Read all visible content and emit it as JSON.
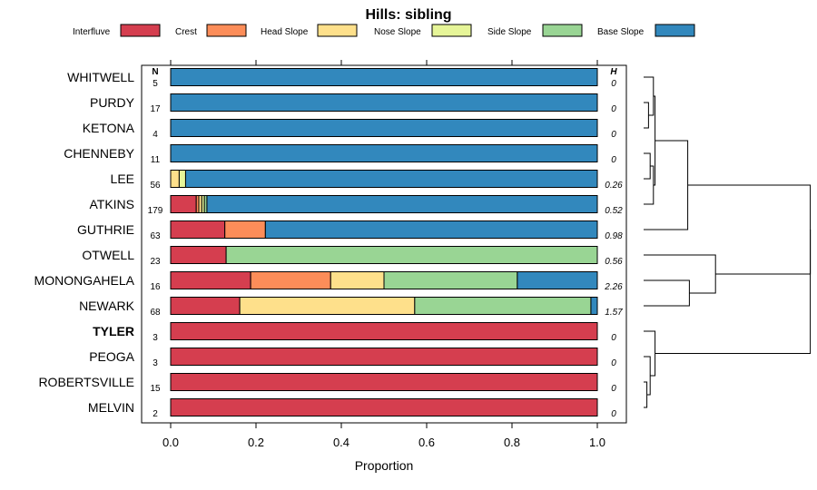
{
  "chart_data": {
    "type": "bar",
    "orientation": "horizontal",
    "stacked": true,
    "title": "Hills: sibling",
    "xlabel": "Proportion",
    "xlim": [
      0,
      1
    ],
    "xticks": [
      "0.0",
      "0.2",
      "0.4",
      "0.6",
      "0.8",
      "1.0"
    ],
    "n_header": "N",
    "h_header": "H",
    "legend": [
      {
        "name": "Interfluve",
        "color": "#D53E4F"
      },
      {
        "name": "Crest",
        "color": "#FC8D59"
      },
      {
        "name": "Head Slope",
        "color": "#FEE08B"
      },
      {
        "name": "Nose Slope",
        "color": "#E6F598"
      },
      {
        "name": "Side Slope",
        "color": "#99D594"
      },
      {
        "name": "Base Slope",
        "color": "#3288BD"
      }
    ],
    "rows": [
      {
        "label": "WHITWELL",
        "n": "5",
        "h": "0",
        "bold": false,
        "values": [
          0,
          0,
          0,
          0,
          0,
          1
        ]
      },
      {
        "label": "PURDY",
        "n": "17",
        "h": "0",
        "bold": false,
        "values": [
          0,
          0,
          0,
          0,
          0,
          1
        ]
      },
      {
        "label": "KETONA",
        "n": "4",
        "h": "0",
        "bold": false,
        "values": [
          0,
          0,
          0,
          0,
          0,
          1
        ]
      },
      {
        "label": "CHENNEBY",
        "n": "11",
        "h": "0",
        "bold": false,
        "values": [
          0,
          0,
          0,
          0,
          0,
          1
        ]
      },
      {
        "label": "LEE",
        "n": "56",
        "h": "0.26",
        "bold": false,
        "values": [
          0,
          0,
          0.02,
          0.015,
          0,
          0.965
        ]
      },
      {
        "label": "ATKINS",
        "n": "179",
        "h": "0.52",
        "bold": false,
        "values": [
          0.06,
          0.006,
          0.007,
          0.006,
          0.006,
          0.915
        ]
      },
      {
        "label": "GUTHRIE",
        "n": "63",
        "h": "0.98",
        "bold": false,
        "values": [
          0.127,
          0.095,
          0,
          0,
          0,
          0.778
        ]
      },
      {
        "label": "OTWELL",
        "n": "23",
        "h": "0.56",
        "bold": false,
        "values": [
          0.13,
          0,
          0,
          0,
          0.87,
          0
        ]
      },
      {
        "label": "MONONGAHELA",
        "n": "16",
        "h": "2.26",
        "bold": false,
        "values": [
          0.1875,
          0.1875,
          0.125,
          0,
          0.3125,
          0.1875
        ]
      },
      {
        "label": "NEWARK",
        "n": "68",
        "h": "1.57",
        "bold": false,
        "values": [
          0.162,
          0,
          0.41,
          0,
          0.413,
          0.015
        ]
      },
      {
        "label": "TYLER",
        "n": "3",
        "h": "0",
        "bold": true,
        "values": [
          1,
          0,
          0,
          0,
          0,
          0
        ]
      },
      {
        "label": "PEOGA",
        "n": "3",
        "h": "0",
        "bold": false,
        "values": [
          1,
          0,
          0,
          0,
          0,
          0
        ]
      },
      {
        "label": "ROBERTSVILLE",
        "n": "15",
        "h": "0",
        "bold": false,
        "values": [
          1,
          0,
          0,
          0,
          0,
          0
        ]
      },
      {
        "label": "MELVIN",
        "n": "2",
        "h": "0",
        "bold": false,
        "values": [
          1,
          0,
          0,
          0,
          0,
          0
        ]
      }
    ],
    "dendrogram": {
      "merges": [
        {
          "a": 1,
          "b": 2,
          "height": 0.03
        },
        {
          "a": 0,
          "b": -1,
          "height": 0.06
        },
        {
          "a": 3,
          "b": 4,
          "height": 0.04
        },
        {
          "a": 5,
          "b": -3,
          "height": 0.06
        },
        {
          "a": -2,
          "b": -4,
          "height": 0.07
        },
        {
          "a": -5,
          "b": 6,
          "height": 0.27
        },
        {
          "a": 12,
          "b": 13,
          "height": 0.02
        },
        {
          "a": 11,
          "b": -7,
          "height": 0.04
        },
        {
          "a": 10,
          "b": -8,
          "height": 0.07
        },
        {
          "a": 8,
          "b": 9,
          "height": 0.28
        },
        {
          "a": 7,
          "b": -10,
          "height": 0.44
        },
        {
          "a": -6,
          "b": -11,
          "height": 1.02
        },
        {
          "a": -12,
          "b": -9,
          "height": 1.02
        }
      ]
    }
  }
}
